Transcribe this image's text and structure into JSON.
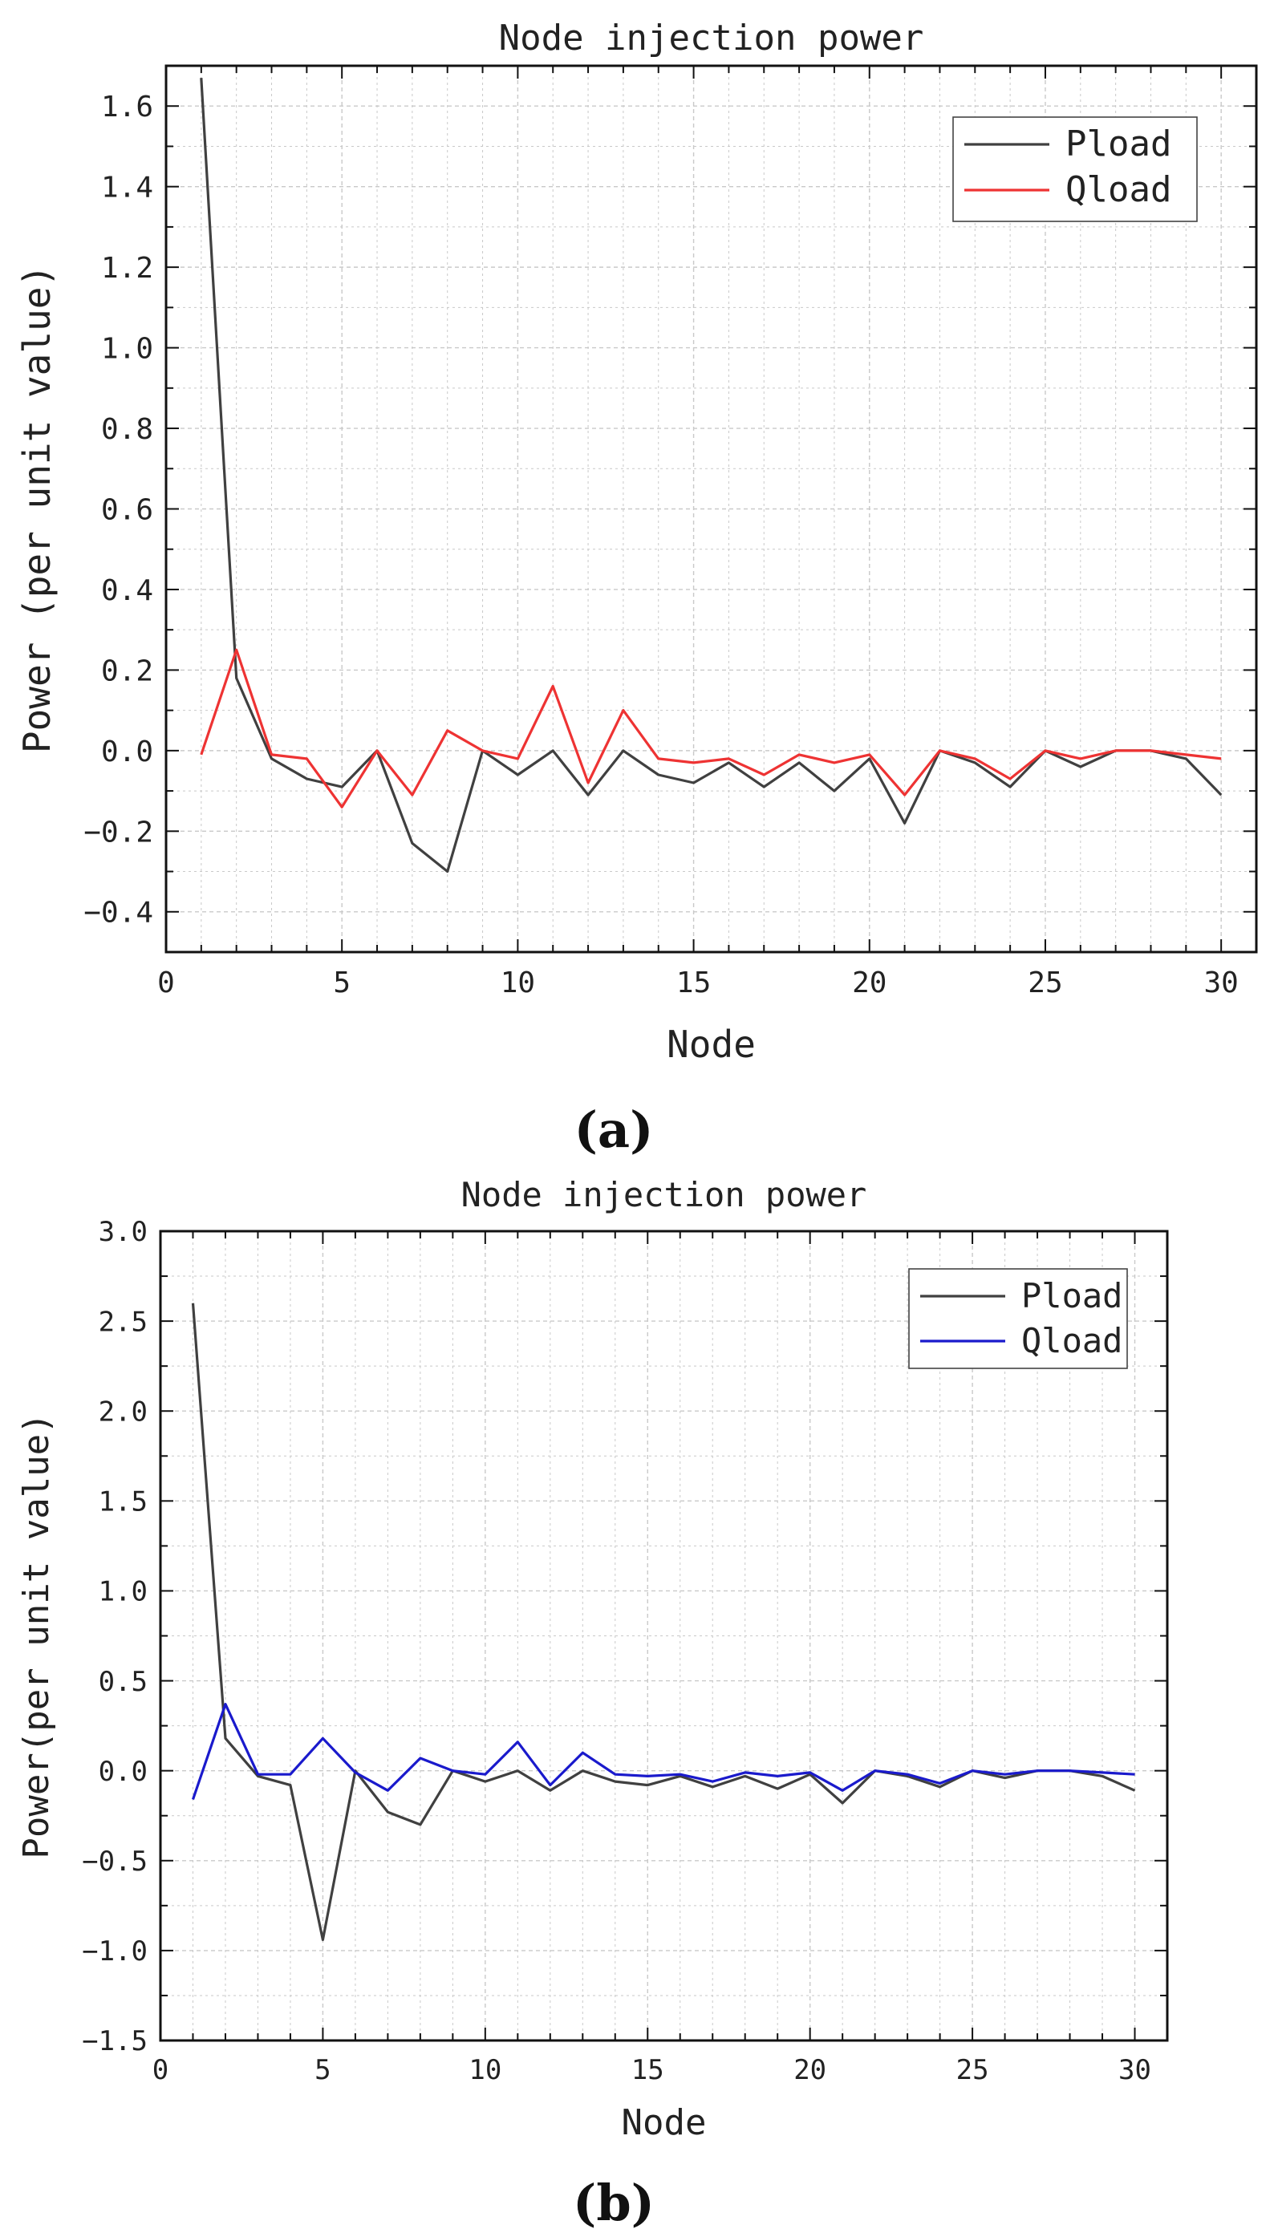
{
  "chart_data": [
    {
      "type": "line",
      "panel_label": "(a)",
      "title": "Node injection power",
      "xlabel": "Node",
      "ylabel": "Power (per unit value)",
      "xlim": [
        0,
        31
      ],
      "ylim": [
        -0.5,
        1.7
      ],
      "xticks": [
        0,
        5,
        10,
        15,
        20,
        25,
        30
      ],
      "xtick_labels": [
        "0",
        "5",
        "10",
        "15",
        "20",
        "25",
        "30"
      ],
      "yticks": [
        -0.4,
        -0.2,
        0.0,
        0.2,
        0.4,
        0.6,
        0.8,
        1.0,
        1.2,
        1.4,
        1.6
      ],
      "ytick_labels": [
        "−0.4",
        "−0.2",
        "0.0",
        "0.2",
        "0.4",
        "0.6",
        "0.8",
        "1.0",
        "1.2",
        "1.4",
        "1.6"
      ],
      "grid": true,
      "legend_position": "top-right",
      "x": [
        1,
        2,
        3,
        4,
        5,
        6,
        7,
        8,
        9,
        10,
        11,
        12,
        13,
        14,
        15,
        16,
        17,
        18,
        19,
        20,
        21,
        22,
        23,
        24,
        25,
        26,
        27,
        28,
        29,
        30
      ],
      "series": [
        {
          "name": "Pload",
          "color": "#404040",
          "values": [
            1.67,
            0.18,
            -0.02,
            -0.07,
            -0.09,
            0.0,
            -0.23,
            -0.3,
            0.0,
            -0.06,
            0.0,
            -0.11,
            0.0,
            -0.06,
            -0.08,
            -0.03,
            -0.09,
            -0.03,
            -0.1,
            -0.02,
            -0.18,
            0.0,
            -0.03,
            -0.09,
            0.0,
            -0.04,
            0.0,
            0.0,
            -0.02,
            -0.11
          ]
        },
        {
          "name": "Qload",
          "color": "#ee3333",
          "values": [
            -0.01,
            0.25,
            -0.01,
            -0.02,
            -0.14,
            0.0,
            -0.11,
            0.05,
            0.0,
            -0.02,
            0.16,
            -0.08,
            0.1,
            -0.02,
            -0.03,
            -0.02,
            -0.06,
            -0.01,
            -0.03,
            -0.01,
            -0.11,
            0.0,
            -0.02,
            -0.07,
            0.0,
            -0.02,
            0.0,
            0.0,
            -0.01,
            -0.02
          ]
        }
      ]
    },
    {
      "type": "line",
      "panel_label": "(b)",
      "title": "Node injection power",
      "xlabel": "Node",
      "ylabel": "Power(per unit value)",
      "xlim": [
        0,
        31
      ],
      "ylim": [
        -1.5,
        3.0
      ],
      "xticks": [
        0,
        5,
        10,
        15,
        20,
        25,
        30
      ],
      "xtick_labels": [
        "0",
        "5",
        "10",
        "15",
        "20",
        "25",
        "30"
      ],
      "yticks": [
        -1.5,
        -1.0,
        -0.5,
        0.0,
        0.5,
        1.0,
        1.5,
        2.0,
        2.5,
        3.0
      ],
      "ytick_labels": [
        "−1.5",
        "−1.0",
        "−0.5",
        "0.0",
        "0.5",
        "1.0",
        "1.5",
        "2.0",
        "2.5",
        "3.0"
      ],
      "grid": true,
      "legend_position": "top-right",
      "x": [
        1,
        2,
        3,
        4,
        5,
        6,
        7,
        8,
        9,
        10,
        11,
        12,
        13,
        14,
        15,
        16,
        17,
        18,
        19,
        20,
        21,
        22,
        23,
        24,
        25,
        26,
        27,
        28,
        29,
        30
      ],
      "series": [
        {
          "name": "Pload",
          "color": "#404040",
          "values": [
            2.6,
            0.18,
            -0.03,
            -0.08,
            -0.94,
            0.0,
            -0.23,
            -0.3,
            0.0,
            -0.06,
            0.0,
            -0.11,
            0.0,
            -0.06,
            -0.08,
            -0.03,
            -0.09,
            -0.03,
            -0.1,
            -0.02,
            -0.18,
            0.0,
            -0.03,
            -0.09,
            0.0,
            -0.04,
            0.0,
            0.0,
            -0.03,
            -0.11
          ]
        },
        {
          "name": "Qload",
          "color": "#1a1acc",
          "values": [
            -0.16,
            0.37,
            -0.02,
            -0.02,
            0.18,
            -0.01,
            -0.11,
            0.07,
            0.0,
            -0.02,
            0.16,
            -0.08,
            0.1,
            -0.02,
            -0.03,
            -0.02,
            -0.06,
            -0.01,
            -0.03,
            -0.01,
            -0.11,
            0.0,
            -0.02,
            -0.07,
            0.0,
            -0.02,
            0.0,
            0.0,
            -0.01,
            -0.02
          ]
        }
      ]
    }
  ]
}
